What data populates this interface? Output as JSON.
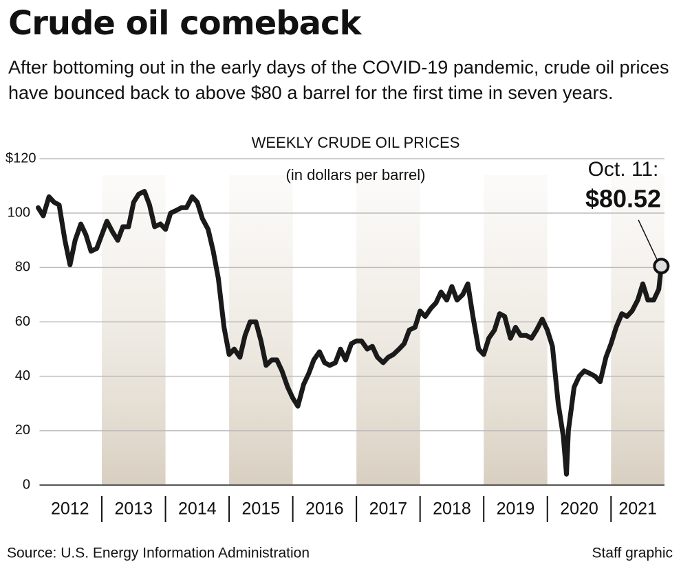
{
  "chart_data": {
    "type": "line",
    "title": "Crude oil comeback",
    "subtitle": "After bottoming out in the early days of the COVID-19 pandemic, crude oil prices have bounced back to above $80 a barrel for the first time in seven years.",
    "chart_title": "WEEKLY CRUDE OIL PRICES",
    "y_label": "(in dollars per barrel)",
    "source": "Source: U.S. Energy Information Administration",
    "credit": "Staff graphic",
    "annotation": {
      "text": "Oct. 11:",
      "value": 80.52,
      "label": "$80.52"
    },
    "series": [
      {
        "name": "Weekly crude oil price",
        "color": "#1a1a1a",
        "x": [
          2012.0,
          2012.08,
          2012.17,
          2012.25,
          2012.33,
          2012.42,
          2012.5,
          2012.58,
          2012.67,
          2012.75,
          2012.83,
          2012.92,
          2013.0,
          2013.08,
          2013.17,
          2013.25,
          2013.33,
          2013.42,
          2013.5,
          2013.58,
          2013.67,
          2013.75,
          2013.83,
          2013.92,
          2014.0,
          2014.08,
          2014.17,
          2014.25,
          2014.33,
          2014.42,
          2014.5,
          2014.58,
          2014.67,
          2014.75,
          2014.83,
          2014.92,
          2015.0,
          2015.08,
          2015.17,
          2015.25,
          2015.33,
          2015.42,
          2015.5,
          2015.58,
          2015.67,
          2015.75,
          2015.83,
          2015.92,
          2016.0,
          2016.08,
          2016.17,
          2016.25,
          2016.33,
          2016.42,
          2016.5,
          2016.58,
          2016.67,
          2016.75,
          2016.83,
          2016.92,
          2017.0,
          2017.08,
          2017.17,
          2017.25,
          2017.33,
          2017.42,
          2017.5,
          2017.58,
          2017.67,
          2017.75,
          2017.83,
          2017.92,
          2018.0,
          2018.08,
          2018.17,
          2018.25,
          2018.33,
          2018.42,
          2018.5,
          2018.58,
          2018.67,
          2018.75,
          2018.83,
          2018.92,
          2019.0,
          2019.08,
          2019.17,
          2019.25,
          2019.33,
          2019.42,
          2019.5,
          2019.58,
          2019.67,
          2019.75,
          2019.83,
          2019.92,
          2020.0,
          2020.08,
          2020.17,
          2020.25,
          2020.3,
          2020.33,
          2020.42,
          2020.5,
          2020.58,
          2020.67,
          2020.75,
          2020.83,
          2020.92,
          2021.0,
          2021.08,
          2021.17,
          2021.25,
          2021.33,
          2021.42,
          2021.5,
          2021.58,
          2021.67,
          2021.75,
          2021.79
        ],
        "values": [
          102,
          99,
          106,
          104,
          103,
          90,
          81,
          90,
          96,
          92,
          86,
          87,
          92,
          97,
          93,
          90,
          95,
          95,
          104,
          107,
          108,
          103,
          95,
          96,
          94,
          100,
          101,
          102,
          102,
          106,
          104,
          98,
          94,
          86,
          76,
          58,
          48,
          50,
          47,
          55,
          60,
          60,
          53,
          44,
          46,
          46,
          42,
          36,
          32,
          29,
          37,
          41,
          46,
          49,
          45,
          44,
          45,
          50,
          46,
          52,
          53,
          53,
          50,
          51,
          47,
          45,
          47,
          48,
          50,
          52,
          57,
          58,
          64,
          62,
          65,
          67,
          71,
          68,
          73,
          68,
          70,
          74,
          62,
          50,
          48,
          54,
          57,
          63,
          62,
          54,
          58,
          55,
          55,
          54,
          57,
          61,
          57,
          51,
          30,
          18,
          4,
          20,
          36,
          40,
          42,
          41,
          40,
          38,
          47,
          52,
          58,
          63,
          62,
          64,
          68,
          74,
          68,
          68,
          72,
          80.52
        ]
      }
    ],
    "xlim": [
      2012,
      2021.84
    ],
    "xticks": [
      {
        "value": 2012.5,
        "label": "2012"
      },
      {
        "value": 2013.5,
        "label": "2013"
      },
      {
        "value": 2014.5,
        "label": "2014"
      },
      {
        "value": 2015.5,
        "label": "2015"
      },
      {
        "value": 2016.5,
        "label": "2016"
      },
      {
        "value": 2017.5,
        "label": "2017"
      },
      {
        "value": 2018.5,
        "label": "2018"
      },
      {
        "value": 2019.5,
        "label": "2019"
      },
      {
        "value": 2020.5,
        "label": "2020"
      },
      {
        "value": 2021.42,
        "label": "2021"
      }
    ],
    "ylim": [
      0,
      120
    ],
    "yticks": [
      0,
      20,
      40,
      60,
      80,
      100,
      {
        "value": 120,
        "label": "$120"
      }
    ],
    "grid": true
  }
}
